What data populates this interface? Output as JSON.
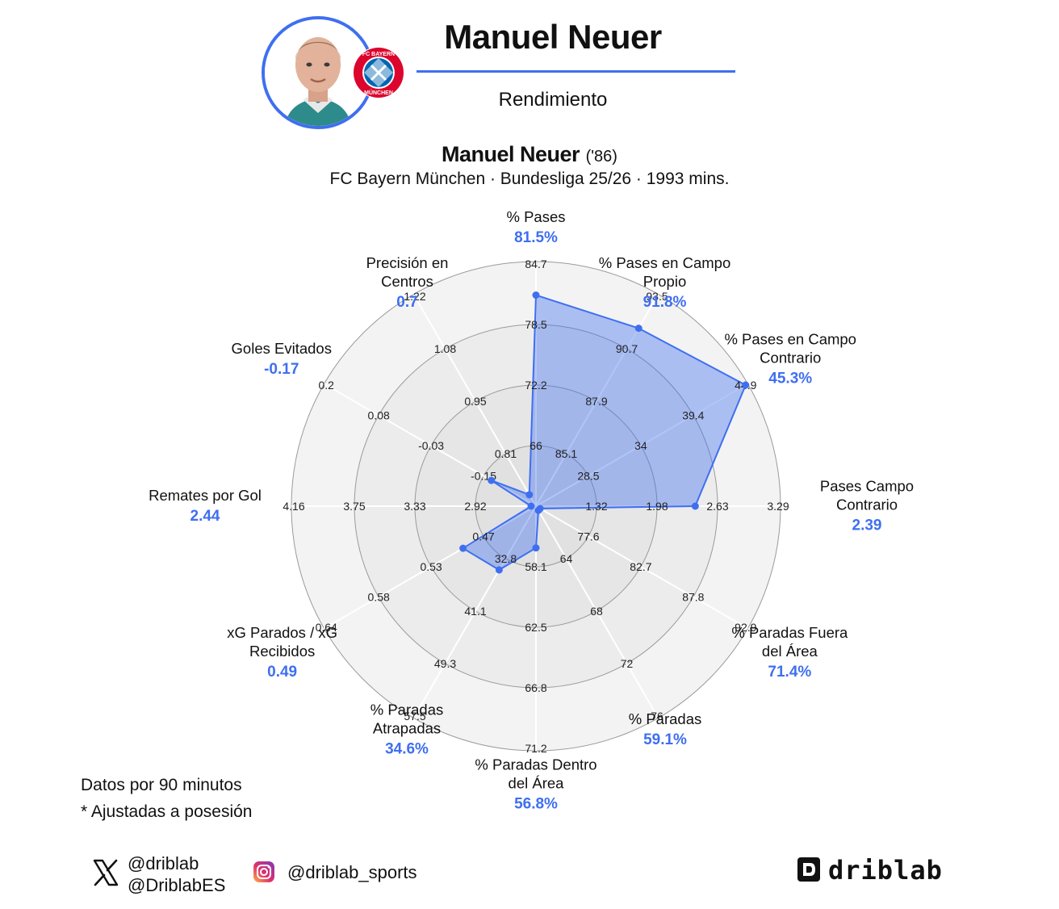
{
  "header": {
    "title": "Manuel Neuer",
    "subtitle": "Rendimiento",
    "crest_text_top": "FC BAYERN",
    "crest_text_bottom": "MÜNCHEN"
  },
  "player": {
    "name": "Manuel Neuer",
    "birth": "('86)",
    "team": "FC Bayern München",
    "competition": "Bundesliga 25/26",
    "minutes": "1993 mins.",
    "team_line": "FC Bayern München · Bundesliga 25/26 · 1993 mins."
  },
  "chart_data": {
    "type": "radar",
    "rings": 4,
    "grid": true,
    "axes": [
      {
        "label": "% Pases",
        "value": 81.5,
        "value_label": "81.5%",
        "ticks": [
          "66",
          "72.2",
          "78.5",
          "84.7"
        ]
      },
      {
        "label": "% Pases en Campo Propio",
        "value": 91.8,
        "value_label": "91.8%",
        "ticks": [
          "85.1",
          "87.9",
          "90.7",
          "93.5"
        ]
      },
      {
        "label": "% Pases en Campo Contrario",
        "value": 45.3,
        "value_label": "45.3%",
        "ticks": [
          "28.5",
          "34",
          "39.4",
          "44.9"
        ]
      },
      {
        "label": "Pases Campo Contrario",
        "value": 2.39,
        "value_label": "2.39",
        "ticks": [
          "1.32",
          "1.98",
          "2.63",
          "3.29"
        ]
      },
      {
        "label": "% Paradas Fuera del Área",
        "value": 71.4,
        "value_label": "71.4%",
        "ticks": [
          "77.6",
          "82.7",
          "87.8",
          "92.9"
        ]
      },
      {
        "label": "% Paradas",
        "value": 59.1,
        "value_label": "59.1%",
        "ticks": [
          "64",
          "68",
          "72",
          "76"
        ]
      },
      {
        "label": "% Paradas Dentro del Área",
        "value": 56.8,
        "value_label": "56.8%",
        "ticks": [
          "58.1",
          "62.5",
          "66.8",
          "71.2"
        ]
      },
      {
        "label": "% Paradas Atrapadas",
        "value": 34.6,
        "value_label": "34.6%",
        "ticks": [
          "32.8",
          "41.1",
          "49.3",
          "57.5"
        ]
      },
      {
        "label": "xG Parados / xG Recibidos",
        "value": 0.49,
        "value_label": "0.49",
        "ticks": [
          "0.47",
          "0.53",
          "0.58",
          "0.64"
        ]
      },
      {
        "label": "Remates por Gol",
        "value": 2.44,
        "value_label": "2.44",
        "ticks": [
          "2.92",
          "3.33",
          "3.75",
          "4.16"
        ]
      },
      {
        "label": "Goles Evitados",
        "value": -0.17,
        "value_label": "-0.17",
        "ticks": [
          "-0.15",
          "-0.03",
          "0.08",
          "0.2"
        ]
      },
      {
        "label": "Precisión en Centros",
        "value": 0.7,
        "value_label": "0.7",
        "ticks": [
          "0.81",
          "0.95",
          "1.08",
          "1.22"
        ]
      }
    ],
    "ranges": [
      [
        59.8,
        84.7
      ],
      [
        82.3,
        93.5
      ],
      [
        23.1,
        44.9
      ],
      [
        0.66,
        3.29
      ],
      [
        72.5,
        92.9
      ],
      [
        60,
        76
      ],
      [
        53.8,
        71.2
      ],
      [
        24.6,
        57.5
      ],
      [
        0.41,
        0.64
      ],
      [
        2.5,
        4.16
      ],
      [
        -0.27,
        0.2
      ],
      [
        0.67,
        1.22
      ]
    ],
    "colors": {
      "fill": "#3f6ff0",
      "stroke": "#3f6ff0",
      "value_text": "#3f6ff0",
      "grid_line": "#ffffff",
      "ring_border": "#9a9a9a"
    }
  },
  "notes": {
    "line1": "Datos por 90 minutos",
    "line2": "* Ajustadas a posesión"
  },
  "social": {
    "x_icon": "x-logo-icon",
    "twitter_handle_1": "@driblab",
    "twitter_handle_2": "@DriblabES",
    "instagram_icon": "instagram-icon",
    "instagram_handle": "@driblab_sports",
    "brand": "driblab"
  }
}
